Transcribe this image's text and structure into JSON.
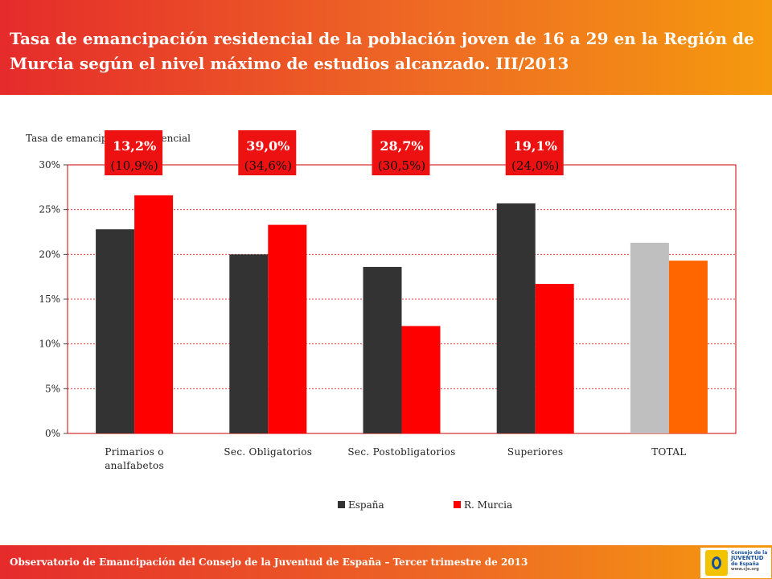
{
  "header": {
    "title": "Tasa de emancipación residencial de la población joven de 16 a 29 en la Región de Murcia según el nivel máximo de estudios alcanzado. III/2013"
  },
  "chart_data": {
    "type": "bar",
    "ylabel": "Tasa de emancipación residencial",
    "ylim": [
      0,
      30
    ],
    "yticks": [
      "0%",
      "5%",
      "10%",
      "15%",
      "20%",
      "25%",
      "30%"
    ],
    "grid": true,
    "categories": [
      "Primarios o analfabetos",
      "Sec. Obligatorios",
      "Sec. Postobligatorios",
      "Superiores",
      "TOTAL"
    ],
    "series": [
      {
        "name": "España",
        "values": [
          22.8,
          20.0,
          18.6,
          25.7,
          21.3
        ],
        "color": "#333333",
        "total_color": "#bfbfbf"
      },
      {
        "name": "R. Murcia",
        "values": [
          26.6,
          23.3,
          12.0,
          16.7,
          19.3
        ],
        "color": "#ff0000",
        "total_color": "#ff6600"
      }
    ],
    "annotations": [
      {
        "category": "Primarios o analfabetos",
        "line1": "13,2%",
        "line2": "(10,9%)"
      },
      {
        "category": "Sec. Obligatorios",
        "line1": "39,0%",
        "line2": "(34,6%)"
      },
      {
        "category": "Sec. Postobligatorios",
        "line1": "28,7%",
        "line2": "(30,5%)"
      },
      {
        "category": "Superiores",
        "line1": "19,1%",
        "line2": "(24,0%)"
      }
    ],
    "legend": "bottom",
    "colors": {
      "gridline": "#e0403a",
      "axis": "#cc0000",
      "annotation_bg": "#ee1111"
    }
  },
  "footer": {
    "text": "Observatorio de Emancipación del Consejo de la Juventud de España – Tercer trimestre de 2013"
  },
  "logo": {
    "line1": "Consejo de la",
    "line2": "JUVENTUD",
    "line3": "de España",
    "url": "www.cje.org"
  }
}
